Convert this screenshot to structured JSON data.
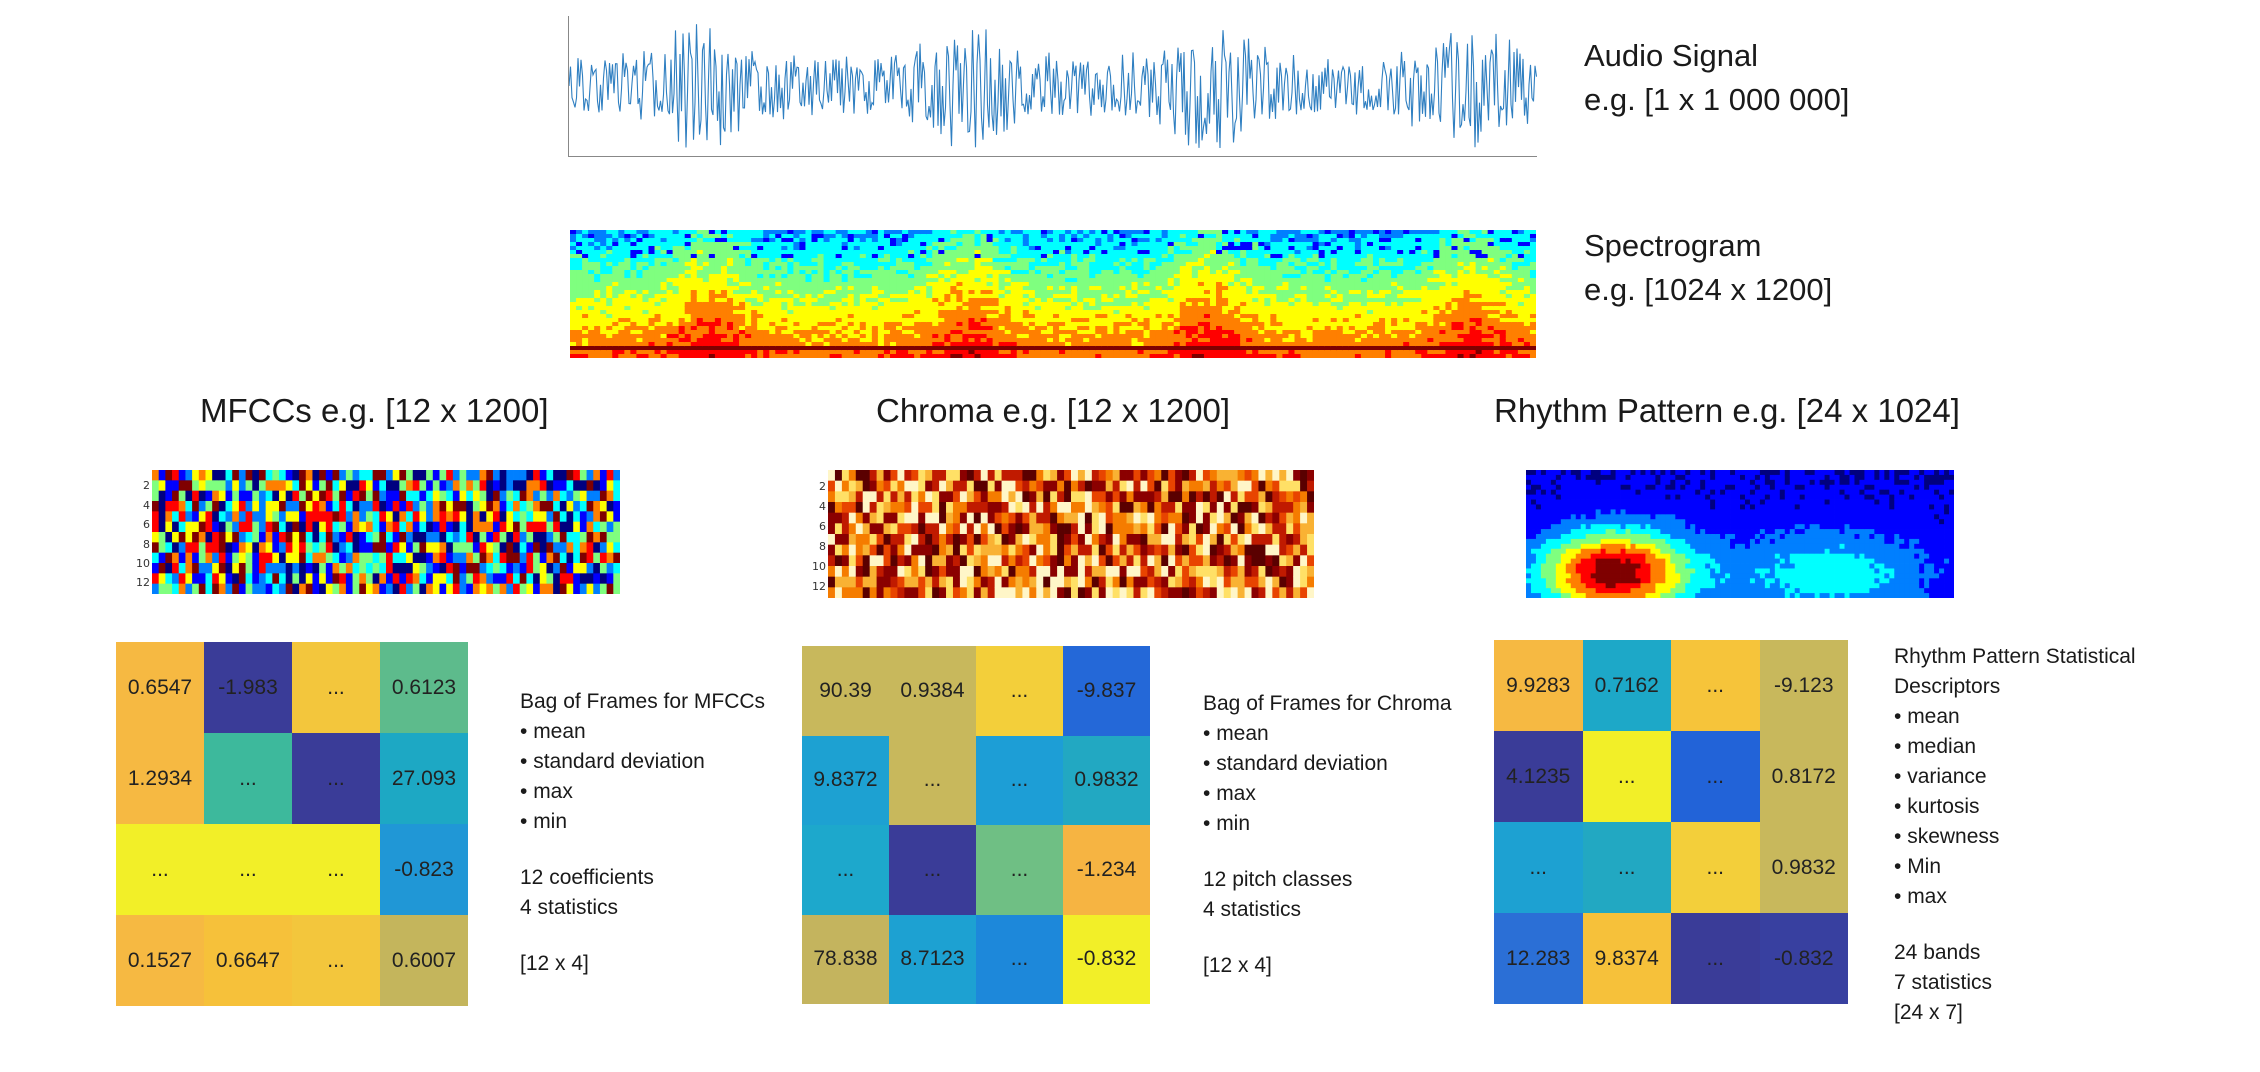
{
  "audio": {
    "title": "Audio Signal",
    "shape": "e.g. [1 x 1 000 000]",
    "color": "#2f7fc1"
  },
  "spectrogram": {
    "title": "Spectrogram",
    "shape": "e.g. [1024 x 1200]"
  },
  "sections": [
    {
      "title": "MFCCs   e.g. [12 x 1200]",
      "yticks": [
        "2",
        "4",
        "6",
        "8",
        "10",
        "12"
      ],
      "matrix": [
        [
          {
            "v": "0.6547",
            "c": "#f6b942"
          },
          {
            "v": "-1.983",
            "c": "#3a3c98"
          },
          {
            "v": "...",
            "c": "#f3c63c"
          },
          {
            "v": "0.6123",
            "c": "#5dbb8c"
          }
        ],
        [
          {
            "v": "1.2934",
            "c": "#f6b942"
          },
          {
            "v": "...",
            "c": "#3db99c"
          },
          {
            "v": "...",
            "c": "#3a3c98"
          },
          {
            "v": "27.093",
            "c": "#1da8c4"
          }
        ],
        [
          {
            "v": "...",
            "c": "#f2ef28"
          },
          {
            "v": "...",
            "c": "#f2ef28"
          },
          {
            "v": "...",
            "c": "#f2ef28"
          },
          {
            "v": "-0.823",
            "c": "#2097d6"
          }
        ],
        [
          {
            "v": "0.1527",
            "c": "#f6b942"
          },
          {
            "v": "0.6647",
            "c": "#f6c13a"
          },
          {
            "v": "...",
            "c": "#f3c63c"
          },
          {
            "v": "0.6007",
            "c": "#c4b55c"
          }
        ]
      ],
      "desc_title": "Bag of Frames for MFCCs",
      "desc_items": [
        "mean",
        "standard deviation",
        "max",
        "min"
      ],
      "desc_lines": [
        "12 coefficients",
        "4 statistics"
      ],
      "desc_shape": "[12 x 4]"
    },
    {
      "title": "Chroma   e.g. [12 x 1200]",
      "yticks": [
        "2",
        "4",
        "6",
        "8",
        "10",
        "12"
      ],
      "matrix": [
        [
          {
            "v": "90.39",
            "c": "#c8b85c"
          },
          {
            "v": "0.9384",
            "c": "#c8b85c"
          },
          {
            "v": "...",
            "c": "#f3cf3a"
          },
          {
            "v": "-9.837",
            "c": "#2468d8"
          }
        ],
        [
          {
            "v": "9.8372",
            "c": "#1da1d2"
          },
          {
            "v": "...",
            "c": "#c8b85c"
          },
          {
            "v": "...",
            "c": "#1d9ed6"
          },
          {
            "v": "0.9832",
            "c": "#22a8c2"
          }
        ],
        [
          {
            "v": "...",
            "c": "#1da8cc"
          },
          {
            "v": "...",
            "c": "#3a3c98"
          },
          {
            "v": "...",
            "c": "#6fbf84"
          },
          {
            "v": "-1.234",
            "c": "#f6b442"
          }
        ],
        [
          {
            "v": "78.838",
            "c": "#c4b45e"
          },
          {
            "v": "8.7123",
            "c": "#1da1d2"
          },
          {
            "v": "...",
            "c": "#1d88da"
          },
          {
            "v": "-0.832",
            "c": "#f2ef28"
          }
        ]
      ],
      "desc_title": "Bag of Frames for Chroma",
      "desc_items": [
        "mean",
        "standard deviation",
        "max",
        "min"
      ],
      "desc_lines": [
        "12 pitch classes",
        "4 statistics"
      ],
      "desc_shape": "[12 x 4]"
    },
    {
      "title": "Rhythm Pattern    e.g. [24 x 1024]",
      "yticks": [
        "",
        "",
        "",
        "",
        "",
        ""
      ],
      "matrix": [
        [
          {
            "v": "9.9283",
            "c": "#f6b942"
          },
          {
            "v": "0.7162",
            "c": "#1da8c8"
          },
          {
            "v": "...",
            "c": "#f6c43a"
          },
          {
            "v": "-9.123",
            "c": "#c8b85c"
          }
        ],
        [
          {
            "v": "4.1235",
            "c": "#3a3c98"
          },
          {
            "v": "...",
            "c": "#f2ef28"
          },
          {
            "v": "...",
            "c": "#2263d8"
          },
          {
            "v": "0.8172",
            "c": "#c8b85c"
          }
        ],
        [
          {
            "v": "...",
            "c": "#1da1d2"
          },
          {
            "v": "...",
            "c": "#22a8c2"
          },
          {
            "v": "...",
            "c": "#f3cf3a"
          },
          {
            "v": "0.9832",
            "c": "#c8b85c"
          }
        ],
        [
          {
            "v": "12.283",
            "c": "#2b6fd6"
          },
          {
            "v": "9.8374",
            "c": "#f6c13a"
          },
          {
            "v": "...",
            "c": "#3a3c98"
          },
          {
            "v": "-0.832",
            "c": "#3840a0"
          }
        ]
      ],
      "desc_title": "Rhythm Pattern Statistical Descriptors",
      "desc_items": [
        "mean",
        "median",
        "variance",
        "kurtosis",
        "skewness",
        "Min",
        "max"
      ],
      "desc_lines": [
        "24 bands",
        "7 statistics"
      ],
      "desc_shape": "[24 x 7]"
    }
  ]
}
